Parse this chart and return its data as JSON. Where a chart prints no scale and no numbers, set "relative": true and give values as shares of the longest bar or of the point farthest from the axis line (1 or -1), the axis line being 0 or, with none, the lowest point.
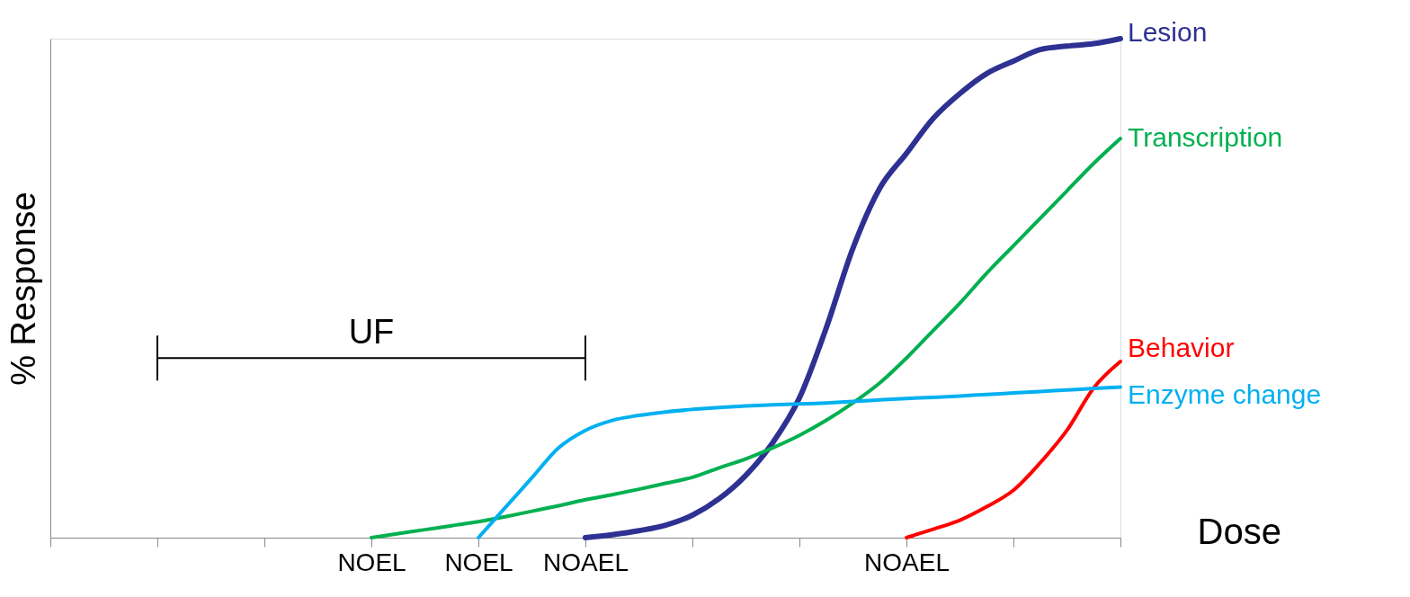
{
  "chart_data": {
    "type": "line",
    "relative": true,
    "xlabel": "Dose",
    "ylabel": "% Response",
    "categories": [
      null,
      null,
      null,
      null,
      null,
      null,
      null,
      null,
      null,
      null,
      null,
      null,
      "NOEL",
      null,
      null,
      null,
      "NOEL",
      null,
      null,
      null,
      "NOAEL",
      null,
      null,
      null,
      null,
      null,
      null,
      null,
      null,
      null,
      null,
      null,
      "NOAEL",
      null,
      null,
      null,
      null,
      null,
      null,
      null,
      null
    ],
    "grid": false,
    "marker": "none",
    "line_style": "solid",
    "annotations": [
      "UF"
    ],
    "series": [
      {
        "name": "Lesion",
        "color": "#2e3192",
        "values": [
          null,
          null,
          null,
          null,
          null,
          null,
          null,
          null,
          null,
          null,
          null,
          null,
          null,
          null,
          null,
          null,
          null,
          null,
          null,
          null,
          0,
          0.006,
          0.014,
          0.025,
          0.045,
          0.078,
          0.125,
          0.19,
          0.28,
          0.42,
          0.58,
          0.7,
          0.77,
          0.84,
          0.89,
          0.93,
          0.955,
          0.978,
          0.985,
          0.99,
          1.0
        ]
      },
      {
        "name": "Transcription",
        "color": "#00b050",
        "values": [
          null,
          null,
          null,
          null,
          null,
          null,
          null,
          null,
          null,
          null,
          null,
          null,
          0,
          0.008,
          0.016,
          0.024,
          0.032,
          0.042,
          0.053,
          0.064,
          0.076,
          0.086,
          0.097,
          0.109,
          0.121,
          0.14,
          0.158,
          0.18,
          0.205,
          0.235,
          0.27,
          0.31,
          0.36,
          0.415,
          0.47,
          0.53,
          0.585,
          0.64,
          0.695,
          0.75,
          0.8
        ]
      },
      {
        "name": "Behavior",
        "color": "#ff0000",
        "values": [
          null,
          null,
          null,
          null,
          null,
          null,
          null,
          null,
          null,
          null,
          null,
          null,
          null,
          null,
          null,
          null,
          null,
          null,
          null,
          null,
          null,
          null,
          null,
          null,
          null,
          null,
          null,
          null,
          null,
          null,
          null,
          null,
          0,
          0.017,
          0.035,
          0.062,
          0.095,
          0.15,
          0.215,
          0.3,
          0.353
        ]
      },
      {
        "name": "Enzyme change",
        "color": "#00b0f0",
        "values": [
          null,
          null,
          null,
          null,
          null,
          null,
          null,
          null,
          null,
          null,
          null,
          null,
          null,
          null,
          null,
          null,
          0,
          0.06,
          0.12,
          0.18,
          0.215,
          0.235,
          0.245,
          0.252,
          0.257,
          0.261,
          0.264,
          0.266,
          0.268,
          0.27,
          0.273,
          0.276,
          0.279,
          0.281,
          0.284,
          0.287,
          0.29,
          0.293,
          0.296,
          0.299,
          0.302
        ]
      }
    ]
  }
}
